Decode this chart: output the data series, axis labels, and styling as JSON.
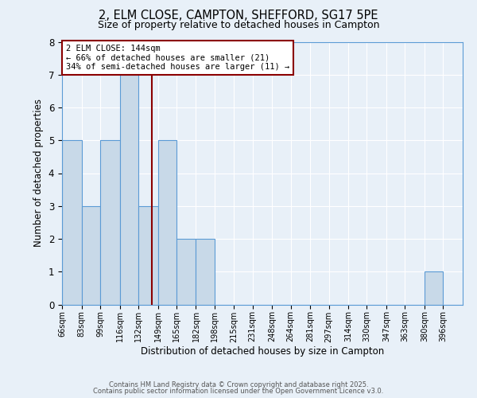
{
  "title1": "2, ELM CLOSE, CAMPTON, SHEFFORD, SG17 5PE",
  "title2": "Size of property relative to detached houses in Campton",
  "xlabel": "Distribution of detached houses by size in Campton",
  "ylabel": "Number of detached properties",
  "bin_edges": [
    66,
    83,
    99,
    116,
    132,
    149,
    165,
    182,
    198,
    215,
    231,
    248,
    264,
    281,
    297,
    314,
    330,
    347,
    363,
    380,
    396
  ],
  "bin_labels": [
    "66sqm",
    "83sqm",
    "99sqm",
    "116sqm",
    "132sqm",
    "149sqm",
    "165sqm",
    "182sqm",
    "198sqm",
    "215sqm",
    "231sqm",
    "248sqm",
    "264sqm",
    "281sqm",
    "297sqm",
    "314sqm",
    "330sqm",
    "347sqm",
    "363sqm",
    "380sqm",
    "396sqm"
  ],
  "bar_heights": [
    5,
    3,
    5,
    7,
    3,
    5,
    2,
    2,
    0,
    0,
    0,
    0,
    0,
    0,
    0,
    0,
    0,
    0,
    0,
    1,
    0
  ],
  "bar_color": "#c8d9e8",
  "bar_edge_color": "#5b9bd5",
  "bg_color": "#e8f0f8",
  "grid_color": "#ffffff",
  "vline_x": 144,
  "vline_color": "#8b0000",
  "annotation_title": "2 ELM CLOSE: 144sqm",
  "annotation_line1": "← 66% of detached houses are smaller (21)",
  "annotation_line2": "34% of semi-detached houses are larger (11) →",
  "annotation_box_color": "#ffffff",
  "annotation_box_edge": "#8b0000",
  "ylim": [
    0,
    8
  ],
  "yticks": [
    0,
    1,
    2,
    3,
    4,
    5,
    6,
    7,
    8
  ],
  "footer1": "Contains HM Land Registry data © Crown copyright and database right 2025.",
  "footer2": "Contains public sector information licensed under the Open Government Licence v3.0."
}
